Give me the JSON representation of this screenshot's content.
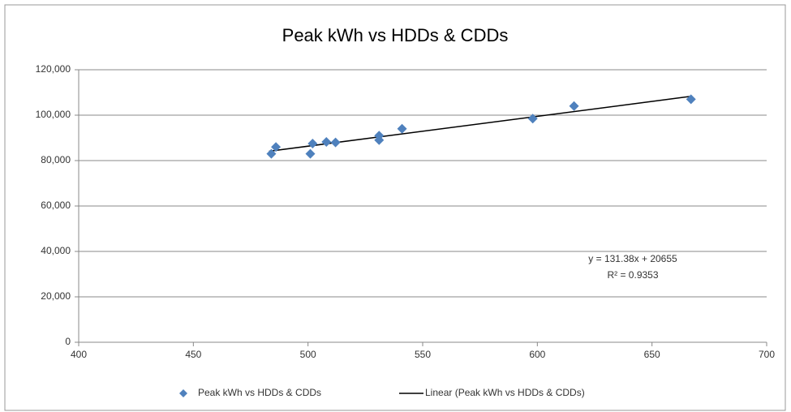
{
  "chart_data": {
    "type": "scatter",
    "title": "Peak kWh vs HDDs & CDDs",
    "series": [
      {
        "name": "Peak kWh vs HDDs & CDDs",
        "kind": "scatter",
        "color": "#4f81bd",
        "x": [
          484,
          486,
          501,
          502,
          508,
          512,
          531,
          531,
          541,
          598,
          616,
          667
        ],
        "values": [
          83000,
          86000,
          83000,
          87500,
          88200,
          88000,
          89000,
          91000,
          94000,
          98500,
          104000,
          107000
        ]
      },
      {
        "name": "Linear (Peak kWh vs HDDs & CDDs)",
        "kind": "line",
        "color": "#000000",
        "x": [
          483,
          667
        ],
        "values": [
          84111,
          108286
        ]
      }
    ],
    "annotations": [
      "y = 131.38x + 20655",
      "R² = 0.9353"
    ],
    "xlim": [
      400,
      700
    ],
    "xticks": [
      400,
      450,
      500,
      550,
      600,
      650,
      700
    ],
    "ylim": [
      0,
      120000
    ],
    "yticks": [
      0,
      {
        "value": 20000,
        "label": "20,000"
      },
      {
        "value": 40000,
        "label": "40,000"
      },
      {
        "value": 60000,
        "label": "60,000"
      },
      {
        "value": 80000,
        "label": "80,000"
      },
      {
        "value": 100000,
        "label": "100,000"
      },
      {
        "value": 120000,
        "label": "120,000"
      }
    ],
    "grid": true,
    "legend": "bottom"
  }
}
